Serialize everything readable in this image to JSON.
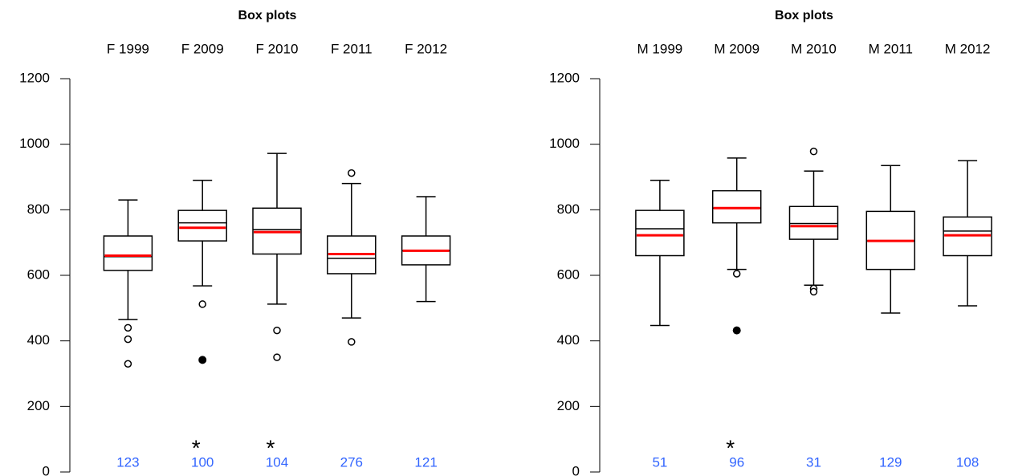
{
  "chart_data": [
    {
      "type": "box",
      "title": "Box plots",
      "categories": [
        "F 1999",
        "F 2009",
        "F 2010",
        "F 2011",
        "F 2012"
      ],
      "whisker_low": [
        465,
        568,
        512,
        470,
        520
      ],
      "q1": [
        615,
        705,
        665,
        605,
        632
      ],
      "median": [
        657,
        760,
        740,
        652,
        675
      ],
      "q3": [
        720,
        798,
        805,
        720,
        720
      ],
      "whisker_high": [
        830,
        890,
        972,
        880,
        840
      ],
      "mean": [
        660,
        745,
        732,
        665,
        675
      ],
      "outliers": [
        [
          440,
          405,
          330
        ],
        [
          512
        ],
        [
          432,
          350
        ],
        [
          912,
          397
        ],
        []
      ],
      "extremes": [
        [],
        [
          342
        ],
        [],
        [],
        []
      ],
      "counts": [
        123,
        100,
        104,
        276,
        121
      ],
      "annotations": [
        null,
        "*",
        "*",
        null,
        null
      ],
      "ylim": [
        0,
        1200
      ],
      "yticks": [
        0,
        200,
        400,
        600,
        800,
        1000,
        1200
      ],
      "colors": {
        "box": "#000000",
        "mean": "#ff0000",
        "count": "#3366ff"
      }
    },
    {
      "type": "box",
      "title": "Box plots",
      "categories": [
        "M 1999",
        "M 2009",
        "M 2010",
        "M 2011",
        "M 2012"
      ],
      "whisker_low": [
        447,
        618,
        570,
        485,
        507
      ],
      "q1": [
        660,
        760,
        710,
        618,
        660
      ],
      "median": [
        742,
        805,
        758,
        705,
        735
      ],
      "q3": [
        798,
        858,
        810,
        795,
        778
      ],
      "whisker_high": [
        890,
        958,
        918,
        935,
        950
      ],
      "mean": [
        722,
        805,
        750,
        705,
        722
      ],
      "outliers": [
        [],
        [
          605
        ],
        [
          978,
          560,
          550
        ],
        [],
        []
      ],
      "extremes": [
        [],
        [
          432
        ],
        [],
        [],
        []
      ],
      "counts": [
        51,
        96,
        31,
        129,
        108
      ],
      "annotations": [
        null,
        "*",
        null,
        null,
        null
      ],
      "ylim": [
        0,
        1200
      ],
      "yticks": [
        0,
        200,
        400,
        600,
        800,
        1000,
        1200
      ],
      "colors": {
        "box": "#000000",
        "mean": "#ff0000",
        "count": "#3366ff"
      }
    }
  ]
}
